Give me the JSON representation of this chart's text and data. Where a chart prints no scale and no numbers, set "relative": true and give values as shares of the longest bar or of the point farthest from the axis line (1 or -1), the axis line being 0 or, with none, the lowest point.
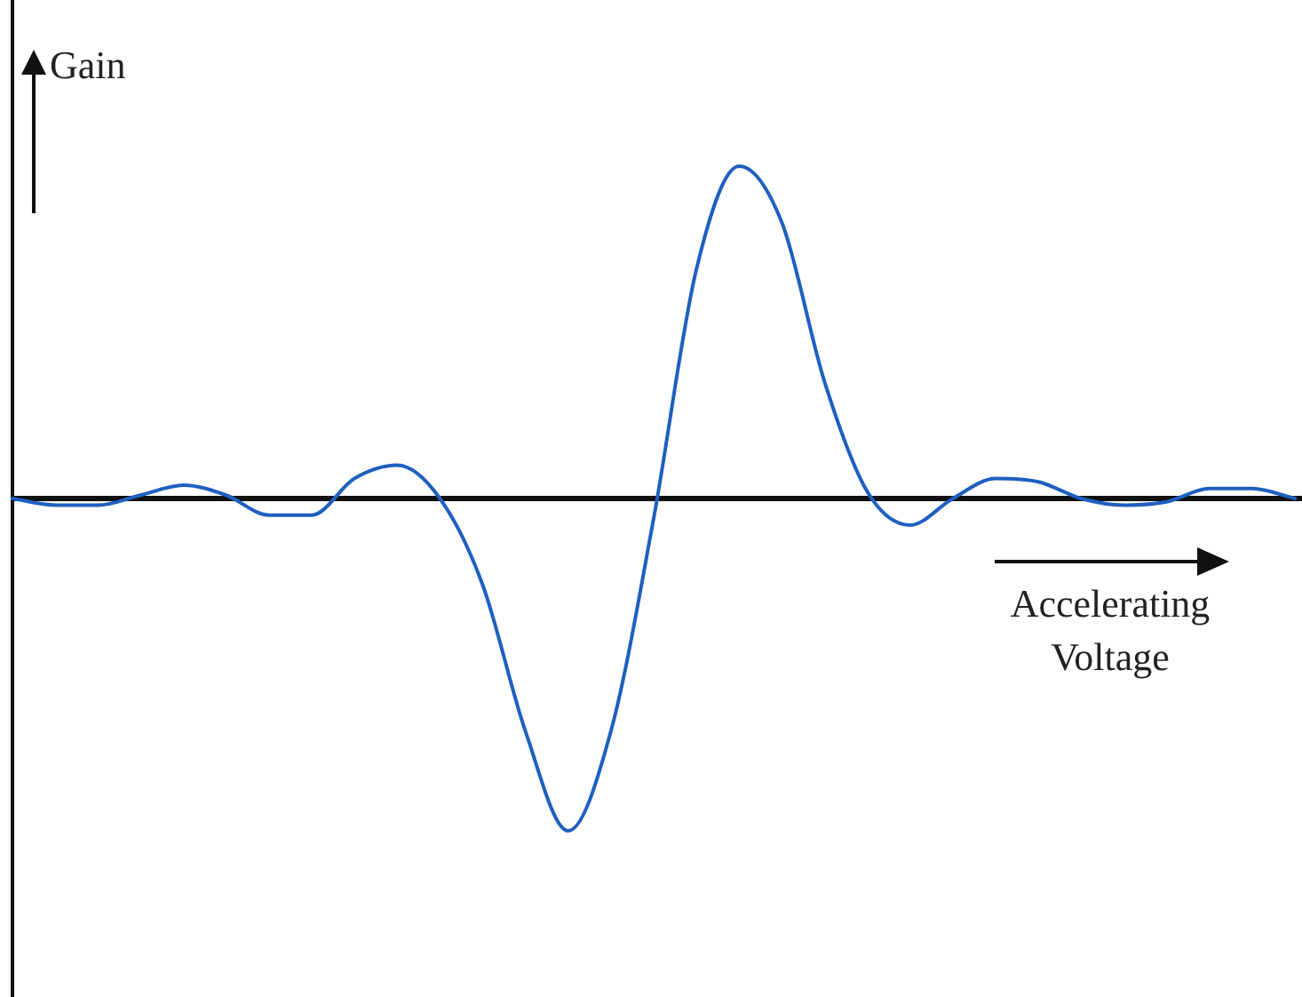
{
  "chart_data": {
    "type": "line",
    "relative": true,
    "xlabel": "Accelerating Voltage",
    "ylabel": "Gain",
    "legend": false,
    "grid": false,
    "marker": "none",
    "line_style": "solid",
    "categories": [
      null,
      null,
      null,
      null,
      null,
      null,
      null,
      null,
      null,
      null,
      null,
      null,
      null,
      null,
      null,
      null,
      null,
      null,
      null,
      null,
      null,
      null,
      null,
      null,
      null,
      null,
      null,
      null,
      null,
      null,
      null
    ],
    "series": [
      {
        "color": "#1f5fc0",
        "values": [
          0,
          -0.02,
          -0.02,
          0.01,
          0.04,
          0.01,
          -0.05,
          -0.05,
          0.06,
          0.1,
          0,
          -0.26,
          -0.7,
          -1,
          -0.7,
          -0.06,
          0.69,
          1,
          0.83,
          0.35,
          0.02,
          -0.08,
          0,
          0.06,
          0.05,
          0,
          -0.02,
          -0.01,
          0.03,
          0.03,
          0
        ]
      }
    ]
  }
}
